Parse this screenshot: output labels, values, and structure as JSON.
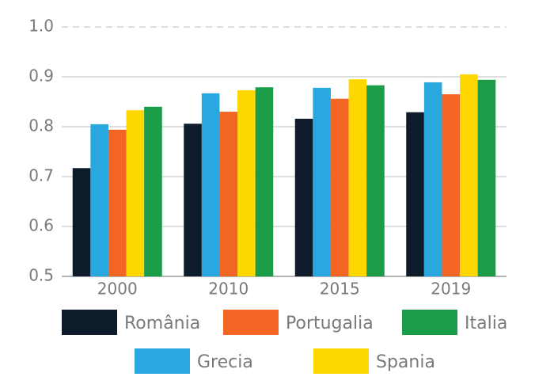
{
  "chart_data": {
    "type": "bar",
    "categories": [
      "2000",
      "2010",
      "2015",
      "2019"
    ],
    "series": [
      {
        "name": "România",
        "color": "#0d1b2a",
        "values": [
          0.717,
          0.806,
          0.816,
          0.829
        ]
      },
      {
        "name": "Grecia",
        "color": "#29a8e0",
        "values": [
          0.805,
          0.867,
          0.878,
          0.889
        ]
      },
      {
        "name": "Portugalia",
        "color": "#f26522",
        "values": [
          0.794,
          0.83,
          0.856,
          0.865
        ]
      },
      {
        "name": "Spania",
        "color": "#ffd700",
        "values": [
          0.833,
          0.873,
          0.895,
          0.905
        ]
      },
      {
        "name": "Italia",
        "color": "#1a9c48",
        "values": [
          0.84,
          0.879,
          0.883,
          0.894
        ]
      }
    ],
    "ylim": [
      0.5,
      1
    ],
    "yticks": [
      0.5,
      0.6,
      0.7,
      0.8,
      0.9,
      {
        "value": 1,
        "label": "1.0"
      }
    ],
    "grid": true
  }
}
